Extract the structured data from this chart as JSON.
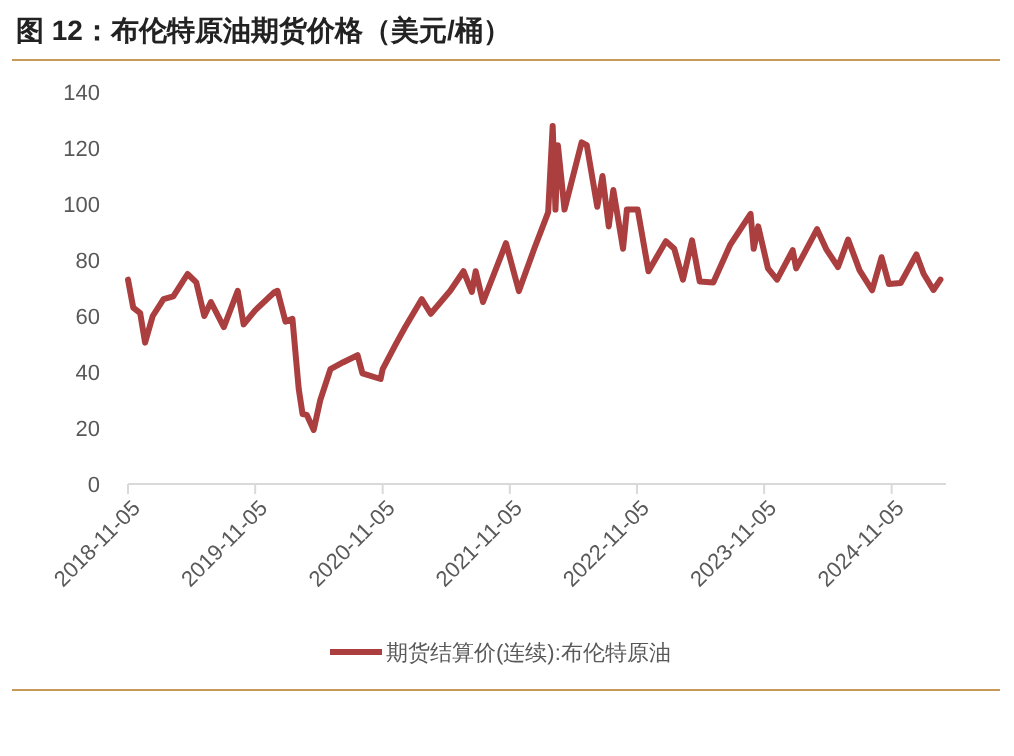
{
  "chart_data": {
    "type": "line",
    "title": "图 12：布伦特原油期货价格（美元/桶）",
    "x": [
      "2018-11-05",
      "2018-11-20",
      "2018-12-10",
      "2018-12-24",
      "2019-01-15",
      "2019-02-15",
      "2019-03-15",
      "2019-04-25",
      "2019-05-20",
      "2019-06-12",
      "2019-07-01",
      "2019-08-07",
      "2019-09-16",
      "2019-10-03",
      "2019-11-05",
      "2019-12-30",
      "2020-01-08",
      "2020-01-31",
      "2020-02-20",
      "2020-03-09",
      "2020-03-20",
      "2020-04-01",
      "2020-04-21",
      "2020-05-10",
      "2020-06-08",
      "2020-07-15",
      "2020-08-25",
      "2020-09-08",
      "2020-10-30",
      "2020-11-05",
      "2020-12-15",
      "2021-01-08",
      "2021-02-25",
      "2021-03-23",
      "2021-05-18",
      "2021-06-25",
      "2021-07-19",
      "2021-07-30",
      "2021-08-20",
      "2021-10-25",
      "2021-12-01",
      "2022-01-14",
      "2022-02-23",
      "2022-03-08",
      "2022-03-16",
      "2022-03-23",
      "2022-04-11",
      "2022-05-30",
      "2022-06-14",
      "2022-07-14",
      "2022-07-29",
      "2022-08-16",
      "2022-08-29",
      "2022-09-26",
      "2022-10-07",
      "2022-11-07",
      "2022-12-08",
      "2023-01-27",
      "2023-02-20",
      "2023-03-17",
      "2023-04-12",
      "2023-05-04",
      "2023-06-12",
      "2023-07-31",
      "2023-09-27",
      "2023-10-06",
      "2023-10-19",
      "2023-11-16",
      "2023-12-12",
      "2024-01-26",
      "2024-02-05",
      "2024-04-05",
      "2024-05-02",
      "2024-06-04",
      "2024-07-03",
      "2024-08-05",
      "2024-09-10",
      "2024-10-07",
      "2024-10-28",
      "2024-12-01",
      "2025-01-15",
      "2025-02-05",
      "2025-03-05",
      "2025-03-25"
    ],
    "series": [
      {
        "name": "期货结算价(连续):布伦特原油",
        "color": "#ab3f3f",
        "values": [
          73,
          63,
          61,
          50.5,
          60,
          66,
          67,
          75,
          72,
          60,
          65,
          56,
          69,
          57,
          62,
          68.5,
          69,
          58,
          59,
          34,
          25,
          24.7,
          19.3,
          30,
          41,
          43.5,
          46,
          39.5,
          37.5,
          41,
          50.5,
          55.9,
          66,
          60.8,
          69,
          76,
          68.6,
          76,
          65,
          86,
          68.9,
          84,
          97,
          127.9,
          98,
          121,
          98,
          122,
          121,
          99,
          110,
          92,
          105,
          84,
          98,
          98,
          76,
          86.7,
          84,
          73,
          87,
          72.3,
          72,
          85.5,
          96.5,
          84,
          92,
          77,
          73,
          83.5,
          77,
          91,
          83.7,
          77.5,
          87.3,
          76.3,
          69.2,
          81,
          71.4,
          71.8,
          82,
          75,
          69.3,
          73
        ]
      }
    ],
    "xlim": [
      "2018-11-05",
      "2025-04-10"
    ],
    "xticks": [
      "2018-11-05",
      "2019-11-05",
      "2020-11-05",
      "2021-11-05",
      "2022-11-05",
      "2023-11-05",
      "2024-11-05"
    ],
    "ylim": [
      0,
      140
    ],
    "yticks": [
      0,
      20,
      40,
      60,
      80,
      100,
      120,
      140
    ],
    "grid": false,
    "legend": "bottom",
    "line_style": "solid",
    "marker": "none"
  }
}
